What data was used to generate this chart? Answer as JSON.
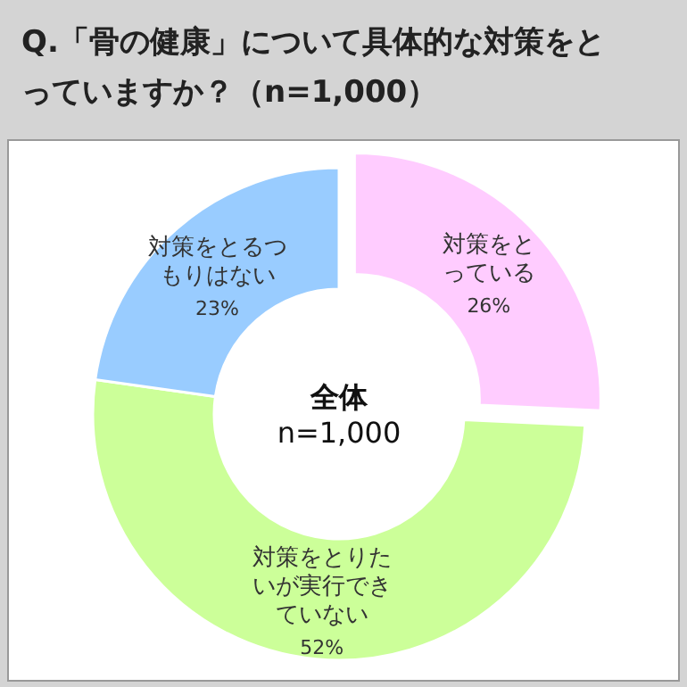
{
  "chart_data": {
    "type": "donut",
    "title": "Q.「骨の健康」について具体的な対策をとっていますか？（n=1,000）",
    "categories": [
      "対策をとっている",
      "対策をとりたいが実行できていない",
      "対策をとるつもりはない"
    ],
    "values": [
      26,
      52,
      23
    ],
    "value_labels": [
      "26%",
      "52%",
      "23%"
    ],
    "colors": [
      "#ffccff",
      "#ccff99",
      "#99ccff"
    ],
    "annotations": [
      "全体",
      "n=1,000"
    ]
  }
}
